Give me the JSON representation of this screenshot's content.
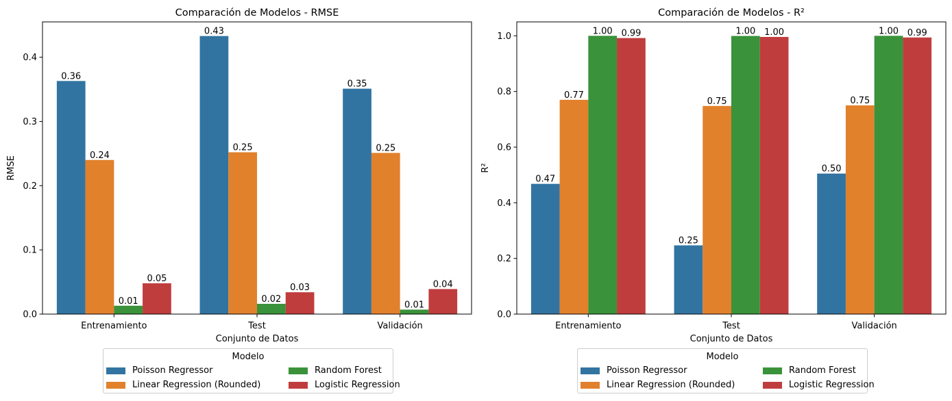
{
  "chart_data": [
    {
      "type": "bar",
      "title": "Comparación de Modelos - RMSE",
      "xlabel": "Conjunto de Datos",
      "ylabel": "RMSE",
      "ylim": [
        0,
        0.455
      ],
      "yticks": [
        0.0,
        0.1,
        0.2,
        0.3,
        0.4
      ],
      "ytick_labels": [
        "0.0",
        "0.1",
        "0.2",
        "0.3",
        "0.4"
      ],
      "categories": [
        "Entrenamiento",
        "Test",
        "Validación"
      ],
      "series": [
        {
          "name": "Poisson Regressor",
          "color": "#3274a1",
          "values": [
            0.363,
            0.433,
            0.351
          ],
          "labels": [
            "0.36",
            "0.43",
            "0.35"
          ]
        },
        {
          "name": "Linear Regression (Rounded)",
          "color": "#e1812c",
          "values": [
            0.24,
            0.252,
            0.251
          ],
          "labels": [
            "0.24",
            "0.25",
            "0.25"
          ]
        },
        {
          "name": "Random Forest",
          "color": "#3a923a",
          "values": [
            0.013,
            0.016,
            0.007
          ],
          "labels": [
            "0.01",
            "0.02",
            "0.01"
          ]
        },
        {
          "name": "Logistic Regression",
          "color": "#c03d3e",
          "values": [
            0.048,
            0.034,
            0.039
          ],
          "labels": [
            "0.05",
            "0.03",
            "0.04"
          ]
        }
      ],
      "grid": false,
      "legend": {
        "title": "Modelo",
        "placement": "below",
        "columns": 2
      }
    },
    {
      "type": "bar",
      "title": "Comparación de Modelos - R²",
      "xlabel": "Conjunto de Datos",
      "ylabel": "R²",
      "ylim": [
        0,
        1.05
      ],
      "yticks": [
        0.0,
        0.2,
        0.4,
        0.6,
        0.8,
        1.0
      ],
      "ytick_labels": [
        "0.0",
        "0.2",
        "0.4",
        "0.6",
        "0.8",
        "1.0"
      ],
      "categories": [
        "Entrenamiento",
        "Test",
        "Validación"
      ],
      "series": [
        {
          "name": "Poisson Regressor",
          "color": "#3274a1",
          "values": [
            0.468,
            0.247,
            0.505
          ],
          "labels": [
            "0.47",
            "0.25",
            "0.50"
          ]
        },
        {
          "name": "Linear Regression (Rounded)",
          "color": "#e1812c",
          "values": [
            0.77,
            0.748,
            0.75
          ],
          "labels": [
            "0.77",
            "0.75",
            "0.75"
          ]
        },
        {
          "name": "Random Forest",
          "color": "#3a923a",
          "values": [
            1.0,
            0.9995,
            1.0
          ],
          "labels": [
            "1.00",
            "1.00",
            "1.00"
          ]
        },
        {
          "name": "Logistic Regression",
          "color": "#c03d3e",
          "values": [
            0.992,
            0.996,
            0.994
          ],
          "labels": [
            "0.99",
            "1.00",
            "0.99"
          ]
        }
      ],
      "grid": false,
      "legend": {
        "title": "Modelo",
        "placement": "below",
        "columns": 2
      }
    }
  ]
}
